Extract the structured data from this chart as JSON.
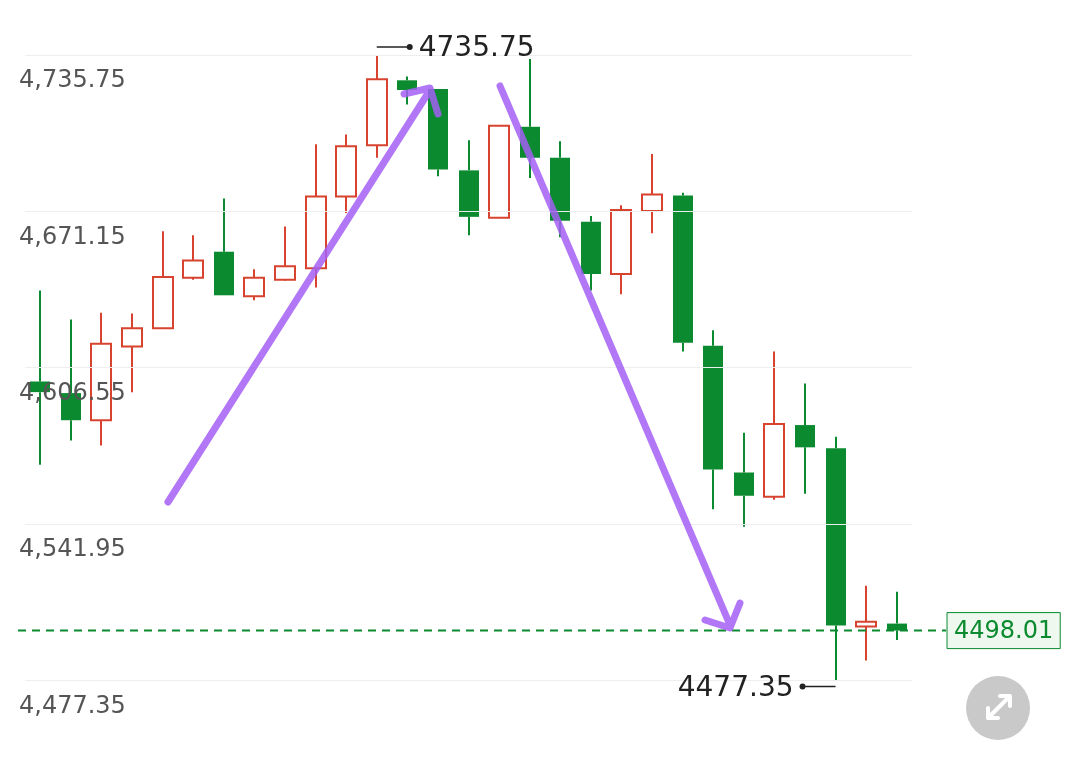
{
  "chart_data": {
    "type": "candlestick",
    "categories": [
      null,
      null,
      null,
      null,
      null,
      null,
      null,
      null,
      null,
      null,
      null,
      null,
      null,
      null,
      null,
      null,
      null,
      null,
      null,
      null,
      null,
      null,
      null,
      null,
      null,
      null,
      null,
      null,
      null
    ],
    "ohlc": [
      [
        4600.9,
        4638.5,
        4566.5,
        4596.5
      ],
      [
        4596.1,
        4626.5,
        4576.5,
        4584.9
      ],
      [
        4584.9,
        4629.3,
        4574.5,
        4616.5
      ],
      [
        4615.3,
        4629.0,
        4596.5,
        4622.9
      ],
      [
        4622.9,
        4663.0,
        4622.9,
        4644.1
      ],
      [
        4643.7,
        4661.3,
        4642.9,
        4650.9
      ],
      [
        4654.5,
        4676.5,
        4636.5,
        4636.5
      ],
      [
        4636.1,
        4647.3,
        4634.5,
        4643.7
      ],
      [
        4642.9,
        4664.9,
        4642.5,
        4648.5
      ],
      [
        4647.7,
        4698.9,
        4639.7,
        4677.3
      ],
      [
        4677.3,
        4702.9,
        4670.5,
        4698.1
      ],
      [
        4698.5,
        4735.75,
        4693.3,
        4725.7
      ],
      [
        4725.3,
        4726.9,
        4715.3,
        4721.3
      ],
      [
        4721.7,
        4721.7,
        4685.7,
        4688.5
      ],
      [
        4688.1,
        4700.5,
        4661.3,
        4668.9
      ],
      [
        4668.5,
        4706.5,
        4668.5,
        4706.5
      ],
      [
        4706.1,
        4734.1,
        4684.9,
        4693.3
      ],
      [
        4693.3,
        4700.1,
        4660.5,
        4667.3
      ],
      [
        4666.9,
        4669.3,
        4638.5,
        4645.3
      ],
      [
        4645.3,
        4673.7,
        4636.9,
        4671.7
      ],
      [
        4671.3,
        4694.9,
        4662.1,
        4678.1
      ],
      [
        4677.7,
        4678.9,
        4613.3,
        4616.9
      ],
      [
        4615.7,
        4622.1,
        4548.1,
        4564.5
      ],
      [
        4563.3,
        4579.7,
        4540.9,
        4553.7
      ],
      [
        4553.3,
        4613.3,
        4552.1,
        4583.3
      ],
      [
        4582.9,
        4600.1,
        4554.5,
        4573.7
      ],
      [
        4573.3,
        4578.1,
        4477.35,
        4500.1
      ],
      [
        4499.7,
        4516.5,
        4485.7,
        4501.7
      ],
      [
        4500.9,
        4514.1,
        4494.1,
        4498.01
      ]
    ],
    "colors": [
      "#0b8a2f",
      "#0b8a2f",
      "#d8432f",
      "#d8432f",
      "#d8432f",
      "#d8432f",
      "#0b8a2f",
      "#d8432f",
      "#d8432f",
      "#d8432f",
      "#d8432f",
      "#d8432f",
      "#0b8a2f",
      "#0b8a2f",
      "#0b8a2f",
      "#d8432f",
      "#0b8a2f",
      "#0b8a2f",
      "#0b8a2f",
      "#d8432f",
      "#d8432f",
      "#0b8a2f",
      "#0b8a2f",
      "#0b8a2f",
      "#d8432f",
      "#0b8a2f",
      "#0b8a2f",
      "#d8432f",
      "#0b8a2f"
    ],
    "ylim": [
      4477.35,
      4735.75
    ],
    "yticks": [
      {
        "value": 4477.35,
        "label": "4,477.35"
      },
      {
        "value": 4541.95,
        "label": "4,541.95"
      },
      {
        "value": 4606.55,
        "label": "4,606.55"
      },
      {
        "value": 4671.15,
        "label": "4,671.15"
      },
      {
        "value": 4735.75,
        "label": "4,735.75"
      }
    ],
    "grid": "y",
    "legend": false,
    "ref_lines": [
      {
        "axis": "y",
        "value": 4498.01,
        "label": "4498.01",
        "color": "#0b8a2f",
        "line_style": "dashed"
      }
    ],
    "annotations": [
      "4735.75",
      "4477.35"
    ]
  }
}
